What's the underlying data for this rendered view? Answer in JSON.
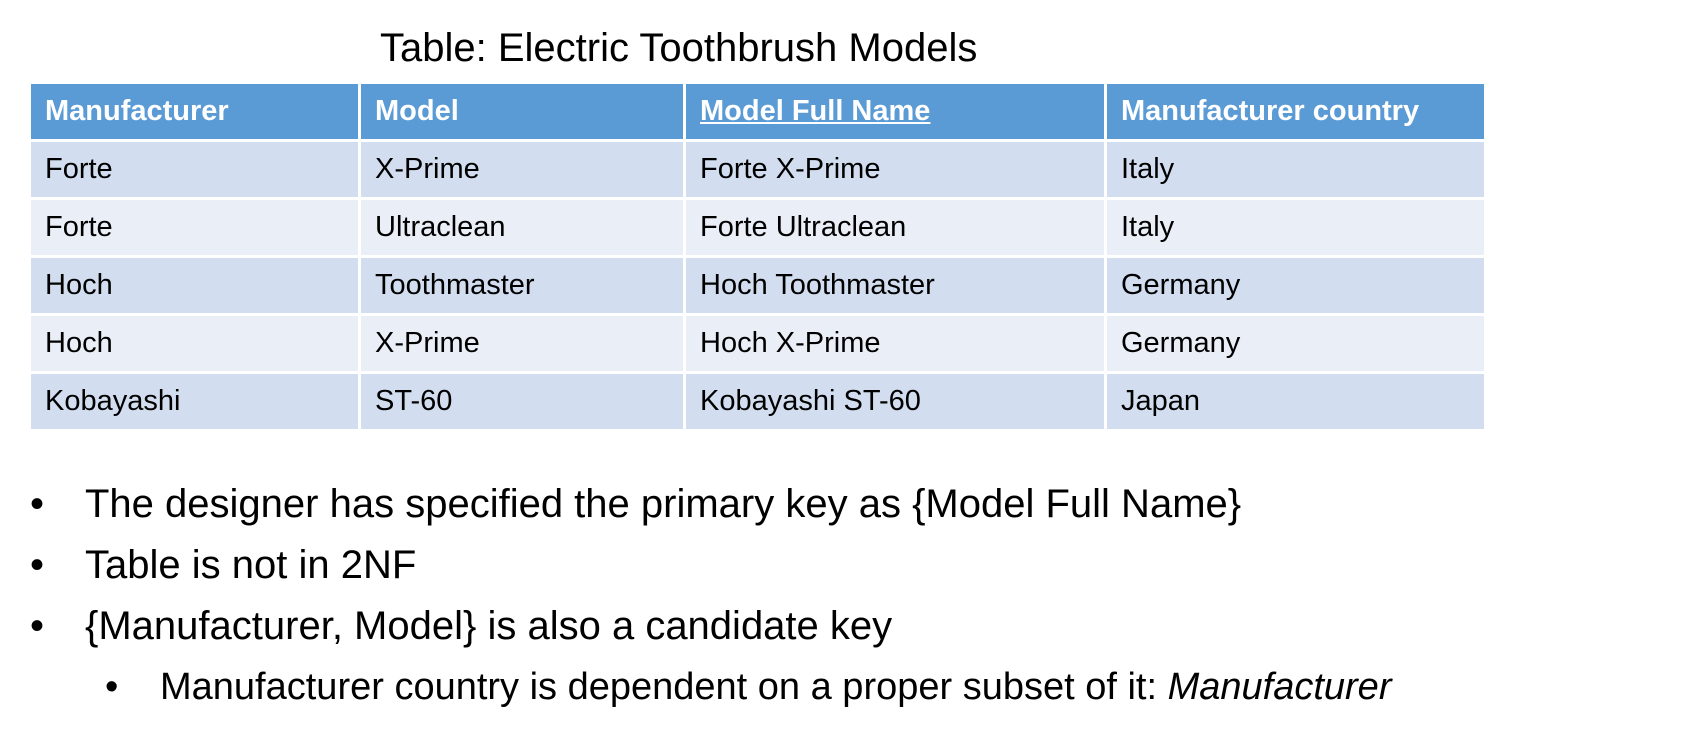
{
  "title": "Table: Electric Toothbrush Models",
  "table": {
    "headers": [
      "Manufacturer",
      "Model",
      "Model Full Name",
      "Manufacturer country"
    ],
    "rows": [
      [
        "Forte",
        "X-Prime",
        "Forte X-Prime",
        "Italy"
      ],
      [
        "Forte",
        "Ultraclean",
        "Forte Ultraclean",
        "Italy"
      ],
      [
        "Hoch",
        "Toothmaster",
        "Hoch Toothmaster",
        "Germany"
      ],
      [
        "Hoch",
        "X-Prime",
        "Hoch X-Prime",
        "Germany"
      ],
      [
        "Kobayashi",
        "ST-60",
        "Kobayashi ST-60",
        "Japan"
      ]
    ]
  },
  "bullets": {
    "marker": "•",
    "items": [
      "The designer has specified the primary key as {Model Full Name}",
      "Table is not in 2NF",
      "{Manufacturer, Model} is also a candidate key"
    ],
    "sub_item": {
      "text": "Manufacturer country is dependent on a proper subset of it: ",
      "emphasis": "Manufacturer"
    }
  },
  "colors": {
    "header_bg": "#5b9bd5",
    "row_odd_bg": "#d2deef",
    "row_even_bg": "#eaeff7"
  }
}
